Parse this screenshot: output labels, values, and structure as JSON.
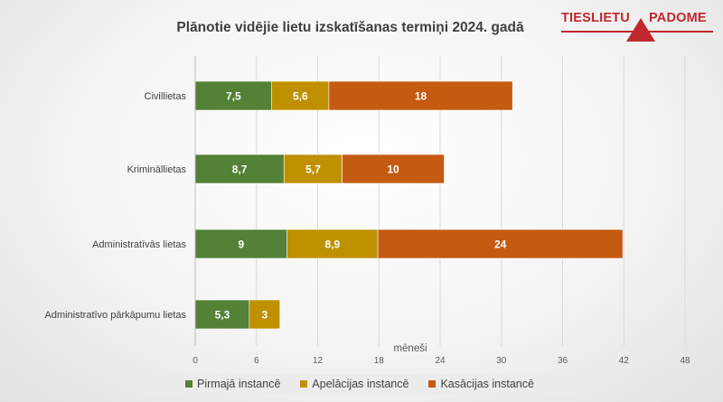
{
  "logo": {
    "left_word": "TIESLIETU",
    "right_word": "PADOME",
    "color": "#c0282d"
  },
  "chart_data": {
    "type": "bar",
    "orientation": "horizontal",
    "stacked": true,
    "title": "Plānotie vidējie lietu izskatīšanas termiņi 2024. gadā",
    "xlabel": "mēneši",
    "ylabel": "",
    "xlim": [
      0,
      48
    ],
    "xticks": [
      0,
      6,
      12,
      18,
      24,
      30,
      36,
      42,
      48
    ],
    "grid": "vertical",
    "legend_position": "bottom",
    "categories": [
      "Civillietas",
      "Krimināllietas",
      "Administratīvās lietas",
      "Administratīvo pārkāpumu lietas"
    ],
    "series": [
      {
        "name": "Pirmajā instancē",
        "color": "#538135",
        "values": [
          7.5,
          8.7,
          9,
          5.3
        ],
        "labels": [
          "7,5",
          "8,7",
          "9",
          "5,3"
        ]
      },
      {
        "name": "Apelācijas instancē",
        "color": "#bf9000",
        "values": [
          5.6,
          5.7,
          8.9,
          3
        ],
        "labels": [
          "5,6",
          "5,7",
          "8,9",
          "3"
        ]
      },
      {
        "name": "Kasācijas instancē",
        "color": "#c55a11",
        "values": [
          18,
          10,
          24,
          null
        ],
        "labels": [
          "18",
          "10",
          "24",
          ""
        ]
      }
    ]
  }
}
